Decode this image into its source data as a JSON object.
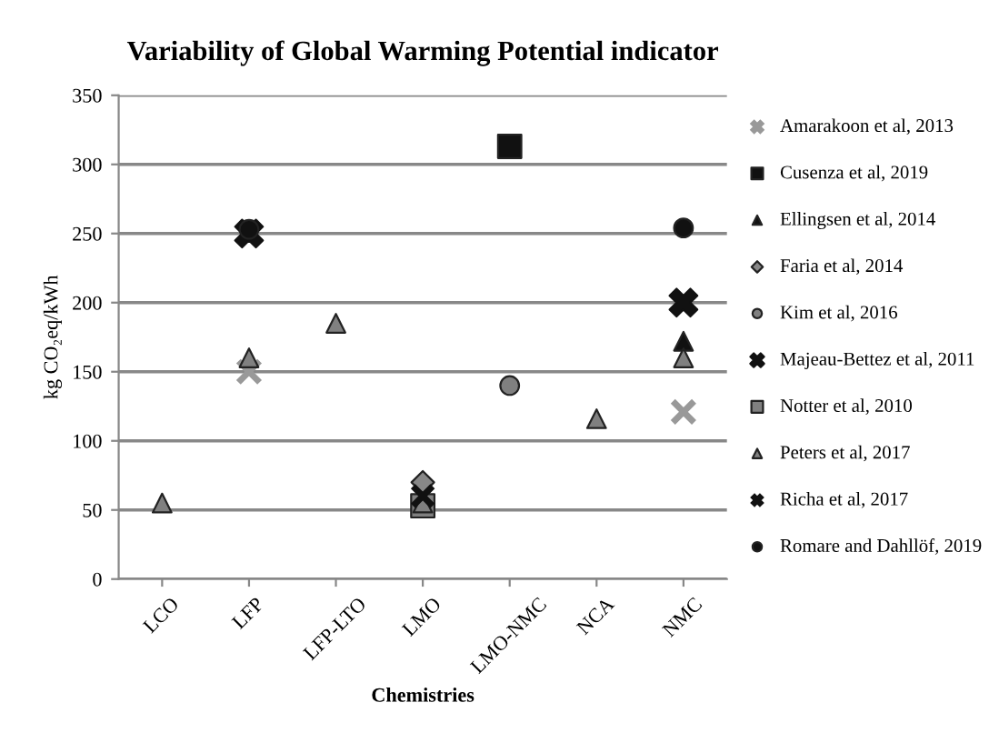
{
  "chart_data": {
    "type": "scatter",
    "title": "Variability of Global Warming Potential indicator",
    "xlabel": "Chemistries",
    "ylabel": "kg CO₂eq/kWh",
    "categories": [
      "LCO",
      "LFP",
      "LFP-LTO",
      "LMO",
      "LMO-NMC",
      "NCA",
      "NMC"
    ],
    "ylim": [
      0,
      350
    ],
    "yticks": [
      0,
      50,
      100,
      150,
      200,
      250,
      300,
      350
    ],
    "grid": "y",
    "legend": "right",
    "series": [
      {
        "name": "Amarakoon et al, 2013",
        "color": "#999999",
        "marker": "cross",
        "values": [
          null,
          150,
          null,
          null,
          null,
          null,
          121
        ]
      },
      {
        "name": "Cusenza et al, 2019",
        "color": "#111111",
        "marker": "square",
        "values": [
          null,
          null,
          null,
          null,
          313,
          null,
          null
        ]
      },
      {
        "name": "Ellingsen et al, 2014",
        "color": "#111111",
        "marker": "triangle",
        "values": [
          null,
          null,
          null,
          null,
          null,
          null,
          172
        ]
      },
      {
        "name": "Faria et al, 2014",
        "color": "#888888",
        "marker": "diamond",
        "values": [
          null,
          null,
          null,
          70,
          null,
          null,
          null
        ]
      },
      {
        "name": "Kim et al, 2016",
        "color": "#808080",
        "marker": "circle",
        "values": [
          null,
          null,
          null,
          null,
          140,
          null,
          null
        ]
      },
      {
        "name": "Majeau-Bettez et al, 2011",
        "color": "#111111",
        "marker": "X",
        "values": [
          null,
          250,
          null,
          null,
          null,
          null,
          200
        ]
      },
      {
        "name": "Notter et al, 2010",
        "color": "#808080",
        "marker": "square",
        "values": [
          null,
          null,
          null,
          53,
          null,
          null,
          null
        ]
      },
      {
        "name": "Peters et al, 2017",
        "color": "#808080",
        "marker": "triangle",
        "values": [
          55,
          160,
          185,
          55,
          null,
          116,
          160
        ]
      },
      {
        "name": "Richa et al, 2017",
        "color": "#111111",
        "marker": "x",
        "values": [
          null,
          null,
          null,
          60,
          null,
          null,
          null
        ]
      },
      {
        "name": "Romare and Dahllöf, 2019",
        "color": "#111111",
        "marker": "circle",
        "values": [
          null,
          253,
          null,
          null,
          null,
          null,
          254
        ]
      }
    ]
  }
}
